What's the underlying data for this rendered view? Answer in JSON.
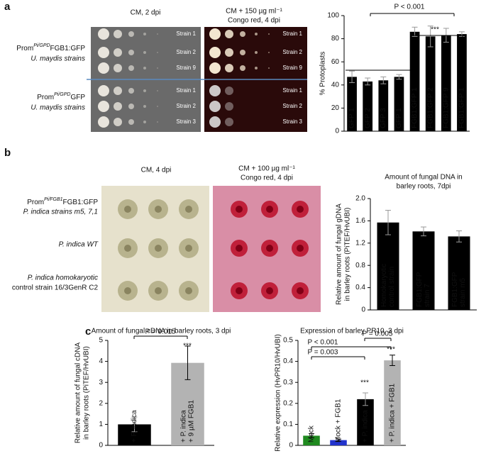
{
  "panel_labels": [
    "a",
    "b",
    "c"
  ],
  "panel_a": {
    "plate_titles": [
      [
        "CM, 2 dpi"
      ],
      [
        "CM + 150 µg ml⁻¹",
        "Congo red, 4 dpi"
      ]
    ],
    "strain_labels": [
      "Strain 1",
      "Strain 2",
      "Strain 9",
      "Strain 1",
      "Strain 2",
      "Strain 3"
    ],
    "row_labels": [
      {
        "prefix": "Prom",
        "sup": "Pi/GPD",
        "main": "FGB1:GFP",
        "line2": "U. maydis strains"
      },
      {
        "prefix": "Prom",
        "sup": "Pi/GPD",
        "main": "GFP",
        "line2": "U. maydis strains"
      }
    ]
  },
  "panel_b": {
    "plate_titles": [
      [
        "CM, 4 dpi"
      ],
      [
        "CM + 100 µg ml⁻¹",
        "Congo red, 4 dpi"
      ]
    ],
    "row_labels": [
      {
        "prefix": "Prom",
        "sup": "Pi/FGB1",
        "main": "FGB1:GFP",
        "line2": "P. indica strains m5, 7,1"
      },
      {
        "main": "P. indica WT"
      },
      {
        "main": "P. indica homokaryotic",
        "line2": "control strain 16/3GenR C2"
      }
    ]
  },
  "chart_data": [
    {
      "type": "bar",
      "ylabel": "% Protoplasts",
      "categories": [
        [
          "GFP 1"
        ],
        [
          "GFP 2"
        ],
        [
          "GFP 3"
        ],
        [
          "GFP 1"
        ],
        [
          "FGB1:GFP 1"
        ],
        [
          "FGB1:GFP 2"
        ],
        [
          "FGB1:GFP 9"
        ],
        [
          "FGB1:GFP 1"
        ]
      ],
      "values": [
        47,
        43,
        44,
        47,
        86,
        82,
        83,
        84
      ],
      "errors": [
        5,
        3,
        3,
        2,
        4,
        9,
        6,
        2
      ],
      "color": "#000000",
      "ylim": [
        0,
        100
      ],
      "yticks": [
        0,
        20,
        40,
        60,
        80,
        100
      ],
      "annotations": [
        "P < 0.001",
        "***"
      ]
    },
    {
      "type": "bar",
      "title": [
        "Amount of fungal DNA in",
        "barley roots, 7dpi"
      ],
      "ylabel": [
        "Relative amount of fungal gDNA",
        "in barley roots (PiTEF/HvUBI)"
      ],
      "categories": [
        [
          "Homokaryotic",
          "control strain"
        ],
        [
          "FGB1:GFP",
          "strain 7"
        ],
        [
          "FGB1:GFP",
          "strain m5"
        ]
      ],
      "values": [
        1.57,
        1.41,
        1.32
      ],
      "errors": [
        0.22,
        0.08,
        0.1
      ],
      "color": "#000000",
      "ylim": [
        0,
        2
      ],
      "yticks": [
        0,
        0.4,
        0.8,
        1.2,
        1.6,
        {
          "value": 2,
          "label": "2.0"
        }
      ]
    },
    {
      "type": "bar",
      "title": "Amount of fungal cDNA in barley roots, 3 dpi",
      "ylabel": [
        "Relative amount of fungal cDNA",
        "in barley roots (PiTEF/HvUBI)"
      ],
      "categories": [
        [
          "+ P. indica"
        ],
        [
          "+ P. indica",
          "+ 9 µM FGB1"
        ]
      ],
      "values": [
        1.0,
        3.93
      ],
      "errors": [
        0.35,
        0.8
      ],
      "colors": [
        "#000000",
        "#b3b3b3"
      ],
      "ylim": [
        0,
        5
      ],
      "yticks": [
        0,
        1,
        2,
        3,
        4,
        5
      ],
      "annotations": [
        "P = 0.015",
        "***"
      ]
    },
    {
      "type": "bar",
      "title": "Expression of barley PR10, 3 dpi",
      "ylabel": "Relative expression (HvPR10/HvUBI)",
      "categories": [
        [
          "Mock"
        ],
        [
          "Mock + FGB1"
        ],
        [
          "+ P. indica"
        ],
        [
          "+ P. indica + FGB1"
        ]
      ],
      "values": [
        0.046,
        0.025,
        0.22,
        0.405
      ],
      "errors": [
        0.01,
        0.005,
        0.03,
        0.025
      ],
      "colors": [
        "#1f8a1f",
        "#2233cc",
        "#000000",
        "#b3b3b3"
      ],
      "ylim": [
        0,
        0.5
      ],
      "yticks": [
        0,
        0.1,
        0.2,
        0.3,
        0.4,
        0.5
      ],
      "annotations": [
        "P < 0.001",
        "P = 0.003",
        "P = 0.005",
        "***",
        "***"
      ]
    }
  ]
}
